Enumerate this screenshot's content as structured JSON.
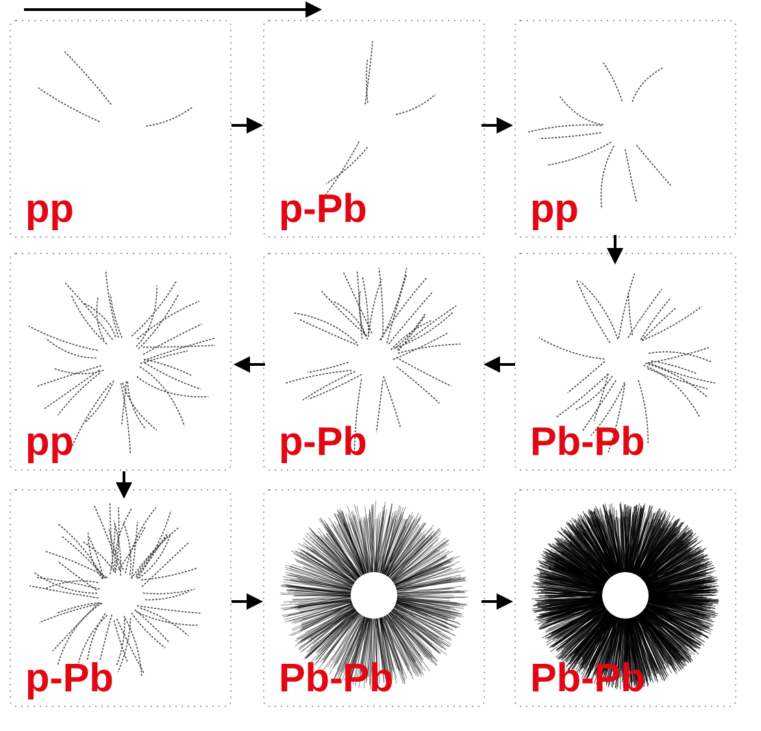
{
  "panels": [
    {
      "label": "pp"
    },
    {
      "label": "p-Pb"
    },
    {
      "label": "pp"
    },
    {
      "label": "pp"
    },
    {
      "label": "p-Pb"
    },
    {
      "label": "Pb-Pb"
    },
    {
      "label": "p-Pb"
    },
    {
      "label": "Pb-Pb"
    },
    {
      "label": "Pb-Pb"
    }
  ]
}
